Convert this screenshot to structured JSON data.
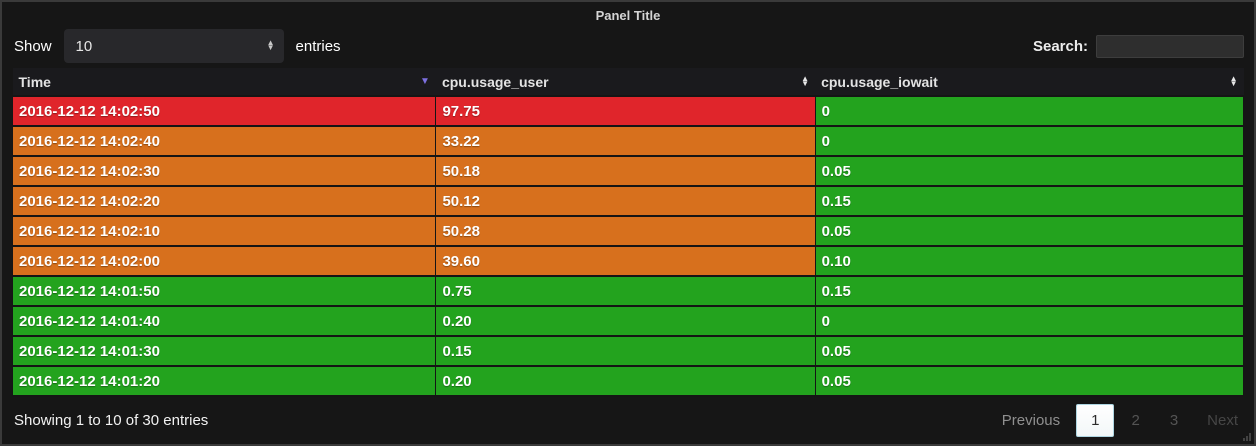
{
  "panel": {
    "title": "Panel Title",
    "colors": {
      "red": "#e0252b",
      "orange": "#d7701d",
      "green": "#23a31e",
      "sort_desc_arrow": "#7d70e0"
    }
  },
  "controls": {
    "show_label": "Show",
    "entries_select_value": "10",
    "entries_label": "entries",
    "search_label": "Search:",
    "search_value": ""
  },
  "table": {
    "columns": [
      {
        "label": "Time",
        "sort": "desc"
      },
      {
        "label": "cpu.usage_user",
        "sort": "unsorted"
      },
      {
        "label": "cpu.usage_iowait",
        "sort": "unsorted"
      }
    ],
    "rows": [
      {
        "time": "2016-12-12 14:02:50",
        "usage_user": "97.75",
        "usage_iowait": "0",
        "row_color": "red",
        "iowait_color": "green"
      },
      {
        "time": "2016-12-12 14:02:40",
        "usage_user": "33.22",
        "usage_iowait": "0",
        "row_color": "orange",
        "iowait_color": "green"
      },
      {
        "time": "2016-12-12 14:02:30",
        "usage_user": "50.18",
        "usage_iowait": "0.05",
        "row_color": "orange",
        "iowait_color": "green"
      },
      {
        "time": "2016-12-12 14:02:20",
        "usage_user": "50.12",
        "usage_iowait": "0.15",
        "row_color": "orange",
        "iowait_color": "green"
      },
      {
        "time": "2016-12-12 14:02:10",
        "usage_user": "50.28",
        "usage_iowait": "0.05",
        "row_color": "orange",
        "iowait_color": "green"
      },
      {
        "time": "2016-12-12 14:02:00",
        "usage_user": "39.60",
        "usage_iowait": "0.10",
        "row_color": "orange",
        "iowait_color": "green"
      },
      {
        "time": "2016-12-12 14:01:50",
        "usage_user": "0.75",
        "usage_iowait": "0.15",
        "row_color": "green",
        "iowait_color": "green"
      },
      {
        "time": "2016-12-12 14:01:40",
        "usage_user": "0.20",
        "usage_iowait": "0",
        "row_color": "green",
        "iowait_color": "green"
      },
      {
        "time": "2016-12-12 14:01:30",
        "usage_user": "0.15",
        "usage_iowait": "0.05",
        "row_color": "green",
        "iowait_color": "green"
      },
      {
        "time": "2016-12-12 14:01:20",
        "usage_user": "0.20",
        "usage_iowait": "0.05",
        "row_color": "green",
        "iowait_color": "green"
      }
    ]
  },
  "footer": {
    "summary": "Showing 1 to 10 of 30 entries",
    "pagination": {
      "previous_label": "Previous",
      "pages": [
        "1",
        "2",
        "3"
      ],
      "active_page": "1",
      "next_label": "Next"
    }
  }
}
